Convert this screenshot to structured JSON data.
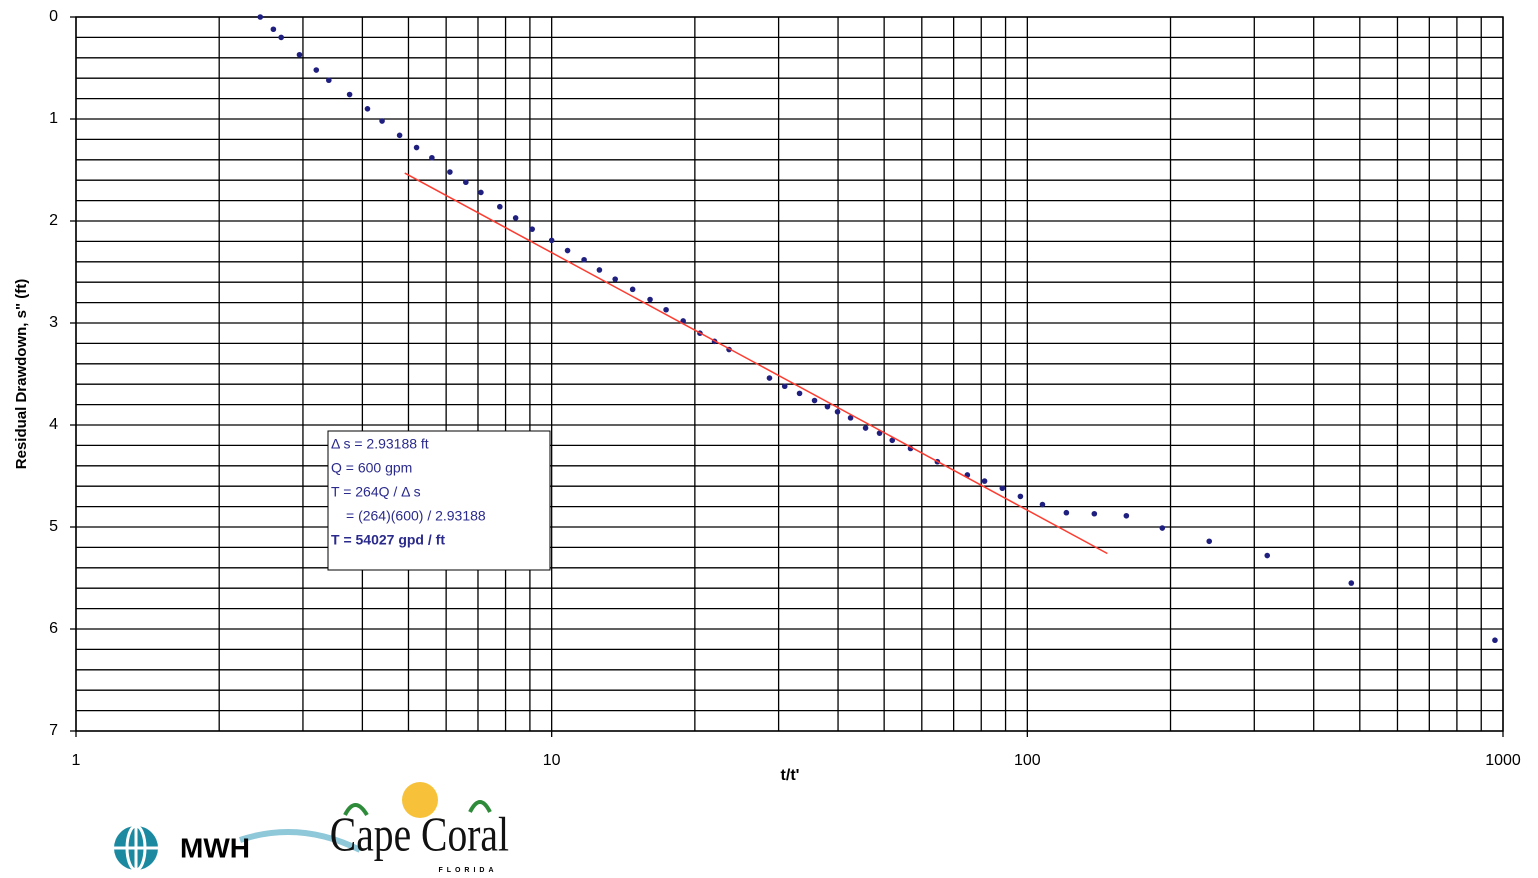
{
  "chart_data": {
    "type": "scatter",
    "x_label": "t/t'",
    "y_label": "Residual Drawdown, s\" (ft)",
    "xscale": "log",
    "xlim": [
      1,
      1000
    ],
    "xticks": [
      1,
      10,
      100,
      1000
    ],
    "xminorticks": [
      2,
      3,
      4,
      5,
      6,
      7,
      8,
      9,
      20,
      30,
      40,
      50,
      60,
      70,
      80,
      90,
      200,
      300,
      400,
      500,
      600,
      700,
      800,
      900
    ],
    "ylim": [
      0,
      7
    ],
    "yinverted": true,
    "yticks": [
      0,
      1,
      2,
      3,
      4,
      5,
      6,
      7
    ],
    "yminorticks": [
      0.2,
      0.4,
      0.6,
      0.8,
      1.2,
      1.4,
      1.6,
      1.8,
      2.2,
      2.4,
      2.6,
      2.8,
      3.2,
      3.4,
      3.6,
      3.8,
      4.2,
      4.4,
      4.6,
      4.8,
      5.2,
      5.4,
      5.6,
      5.8,
      6.2,
      6.4,
      6.6,
      6.8
    ],
    "grid": true,
    "series": [
      {
        "style": "marker",
        "color": "#1f1f80",
        "x": [
          2.44,
          2.6,
          2.7,
          2.95,
          3.2,
          3.4,
          3.76,
          4.1,
          4.4,
          4.79,
          5.2,
          5.6,
          6.11,
          6.6,
          7.1,
          7.78,
          8.4,
          9.1,
          10,
          10.8,
          11.7,
          12.6,
          13.6,
          14.8,
          16.1,
          17.4,
          18.9,
          20.5,
          22.0,
          23.6,
          28.7,
          30.9,
          33.2,
          35.7,
          38.0,
          39.9,
          42.5,
          45.7,
          48.9,
          52.0,
          56.8,
          64.7,
          74.8,
          81.3,
          88.6,
          96.7,
          107.6,
          120.8,
          138.3,
          161.5,
          192.2,
          241.2,
          319.4,
          479.8,
          961.8
        ],
        "values": [
          0,
          0.12,
          0.2,
          0.37,
          0.52,
          0.62,
          0.76,
          0.9,
          1.02,
          1.16,
          1.28,
          1.38,
          1.52,
          1.62,
          1.72,
          1.86,
          1.97,
          2.08,
          2.19,
          2.29,
          2.38,
          2.48,
          2.57,
          2.67,
          2.77,
          2.87,
          2.98,
          3.1,
          3.18,
          3.26,
          3.54,
          3.62,
          3.69,
          3.76,
          3.82,
          3.87,
          3.93,
          4.03,
          4.08,
          4.15,
          4.23,
          4.36,
          4.49,
          4.55,
          4.62,
          4.7,
          4.78,
          4.86,
          4.87,
          4.89,
          5.01,
          5.14,
          5.28,
          5.55,
          6.11
        ]
      },
      {
        "style": "line",
        "color": "#ff3b2f",
        "x": [
          4.91,
          147.3
        ],
        "values": [
          1.53,
          5.26
        ]
      }
    ],
    "annotation": [
      "Δ s = 2.93188 ft",
      "Q = 600 gpm",
      "T = 264Q / Δ s",
      "= (264)(600) / 2.93188",
      "T = 54027 gpd / ft"
    ]
  },
  "logos": [
    "MWH",
    "Cape Coral",
    "FLORIDA"
  ]
}
